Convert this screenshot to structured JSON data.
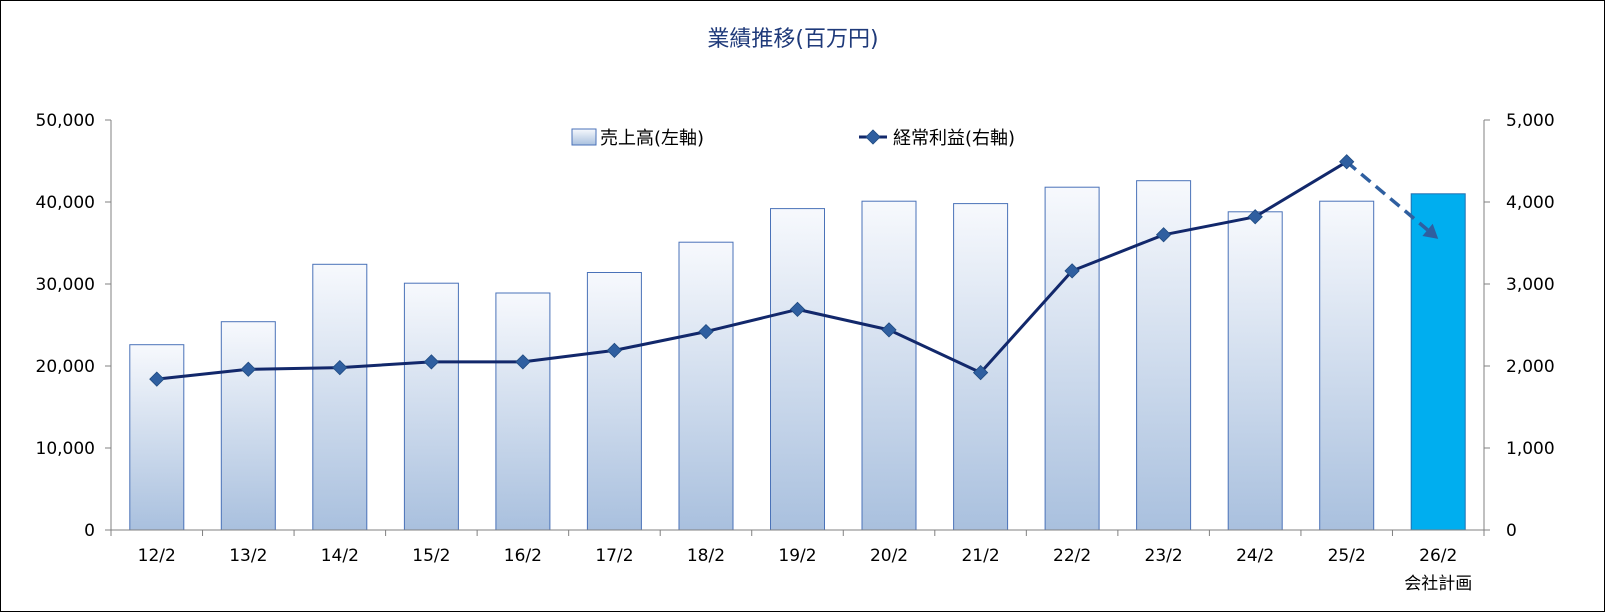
{
  "chart_data": {
    "type": "bar",
    "title": "業績推移(百万円)",
    "categories": [
      "12/2",
      "13/2",
      "14/2",
      "15/2",
      "16/2",
      "17/2",
      "18/2",
      "19/2",
      "20/2",
      "21/2",
      "22/2",
      "23/2",
      "24/2",
      "25/2",
      "26/2"
    ],
    "category_sublabels": [
      "",
      "",
      "",
      "",
      "",
      "",
      "",
      "",
      "",
      "",
      "",
      "",
      "",
      "",
      "会社計画"
    ],
    "series": [
      {
        "name": "売上高(左軸)",
        "type": "bar",
        "axis": "left",
        "values": [
          22600,
          25400,
          32400,
          30100,
          28900,
          31400,
          35100,
          39200,
          40100,
          39800,
          41800,
          42600,
          38800,
          40100,
          41000
        ],
        "highlight_last": true
      },
      {
        "name": "経常利益(右軸)",
        "type": "line",
        "axis": "right",
        "values": [
          1840,
          1960,
          1980,
          2050,
          2050,
          2190,
          2420,
          2690,
          2440,
          1920,
          3160,
          3600,
          3820,
          4490,
          3550
        ],
        "last_segment_dashed": true
      }
    ],
    "y_left": {
      "min": 0,
      "max": 50000,
      "ticks": [
        0,
        10000,
        20000,
        30000,
        40000,
        50000
      ],
      "tick_labels": [
        "0",
        "10,000",
        "20,000",
        "30,000",
        "40,000",
        "50,000"
      ]
    },
    "y_right": {
      "min": 0,
      "max": 5000,
      "ticks": [
        0,
        1000,
        2000,
        3000,
        4000,
        5000
      ],
      "tick_labels": [
        "0",
        "1,000",
        "2,000",
        "3,000",
        "4,000",
        "5,000"
      ]
    },
    "grid": false,
    "legend_position": "top-center",
    "colors": {
      "title": "#1f3a7a",
      "bar_top": "#f7f9fd",
      "bar_bottom": "#a9c0de",
      "bar_border": "#4a72b8",
      "forecast_bar": "#00aeef",
      "forecast_border": "#1f6fb0",
      "line": "#12286b",
      "marker": "#2f5fa0",
      "axis": "#808080"
    }
  }
}
